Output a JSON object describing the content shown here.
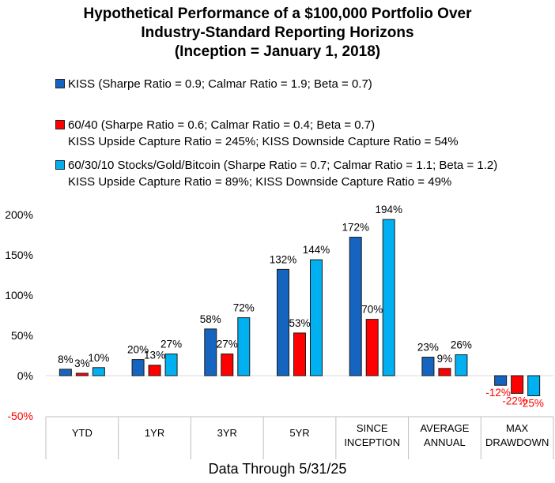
{
  "title_lines": [
    "Hypothetical Performance of a $100,000 Portfolio Over",
    "Industry-Standard Reporting Horizons",
    "(Inception = January 1, 2018)"
  ],
  "legend": [
    {
      "text": "KISS (Sharpe Ratio = 0.9; Calmar Ratio = 1.9; Beta = 0.7)",
      "sub": "",
      "color": "#1565C0"
    },
    {
      "text": "60/40 (Sharpe Ratio = 0.6; Calmar Ratio = 0.4; Beta = 0.7)",
      "sub": "KISS Upside Capture Ratio = 245%; KISS Downside Capture Ratio = 54%",
      "color": "#FF0000"
    },
    {
      "text": "60/30/10 Stocks/Gold/Bitcoin (Sharpe Ratio = 0.7; Calmar Ratio = 1.1; Beta = 1.2)",
      "sub": "KISS Upside Capture Ratio = 89%; KISS Downside Capture Ratio = 49%",
      "color": "#00B0F0"
    }
  ],
  "footer": "Data Through  5/31/25",
  "chart_data": {
    "type": "bar",
    "categories": [
      "YTD",
      "1YR",
      "3YR",
      "5YR",
      "SINCE\nINCEPTION",
      "AVERAGE\nANNUAL",
      "MAX\nDRAWDOWN"
    ],
    "series": [
      {
        "name": "KISS",
        "color": "#1565C0",
        "values": [
          8,
          20,
          58,
          132,
          172,
          23,
          -12
        ]
      },
      {
        "name": "60/40",
        "color": "#FF0000",
        "values": [
          3,
          13,
          27,
          53,
          70,
          9,
          -22
        ]
      },
      {
        "name": "60/30/10 Stocks/Gold/Bitcoin",
        "color": "#00B0F0",
        "values": [
          10,
          27,
          72,
          144,
          194,
          26,
          -25
        ]
      }
    ],
    "data_labels": [
      [
        "8%",
        "20%",
        "58%",
        "132%",
        "172%",
        "23%",
        "-12%"
      ],
      [
        "3%",
        "13%",
        "27%",
        "53%",
        "70%",
        "9%",
        "-22%"
      ],
      [
        "10%",
        "27%",
        "72%",
        "144%",
        "194%",
        "26%",
        "-25%"
      ]
    ],
    "yticks": [
      200,
      150,
      100,
      50,
      0,
      -50
    ],
    "ytick_labels": [
      "200%",
      "150%",
      "100%",
      "50%",
      "0%",
      "-50%"
    ],
    "ylim": [
      -50,
      200
    ],
    "negative_label_color": "#FF0000",
    "xlabel": "",
    "ylabel": ""
  }
}
